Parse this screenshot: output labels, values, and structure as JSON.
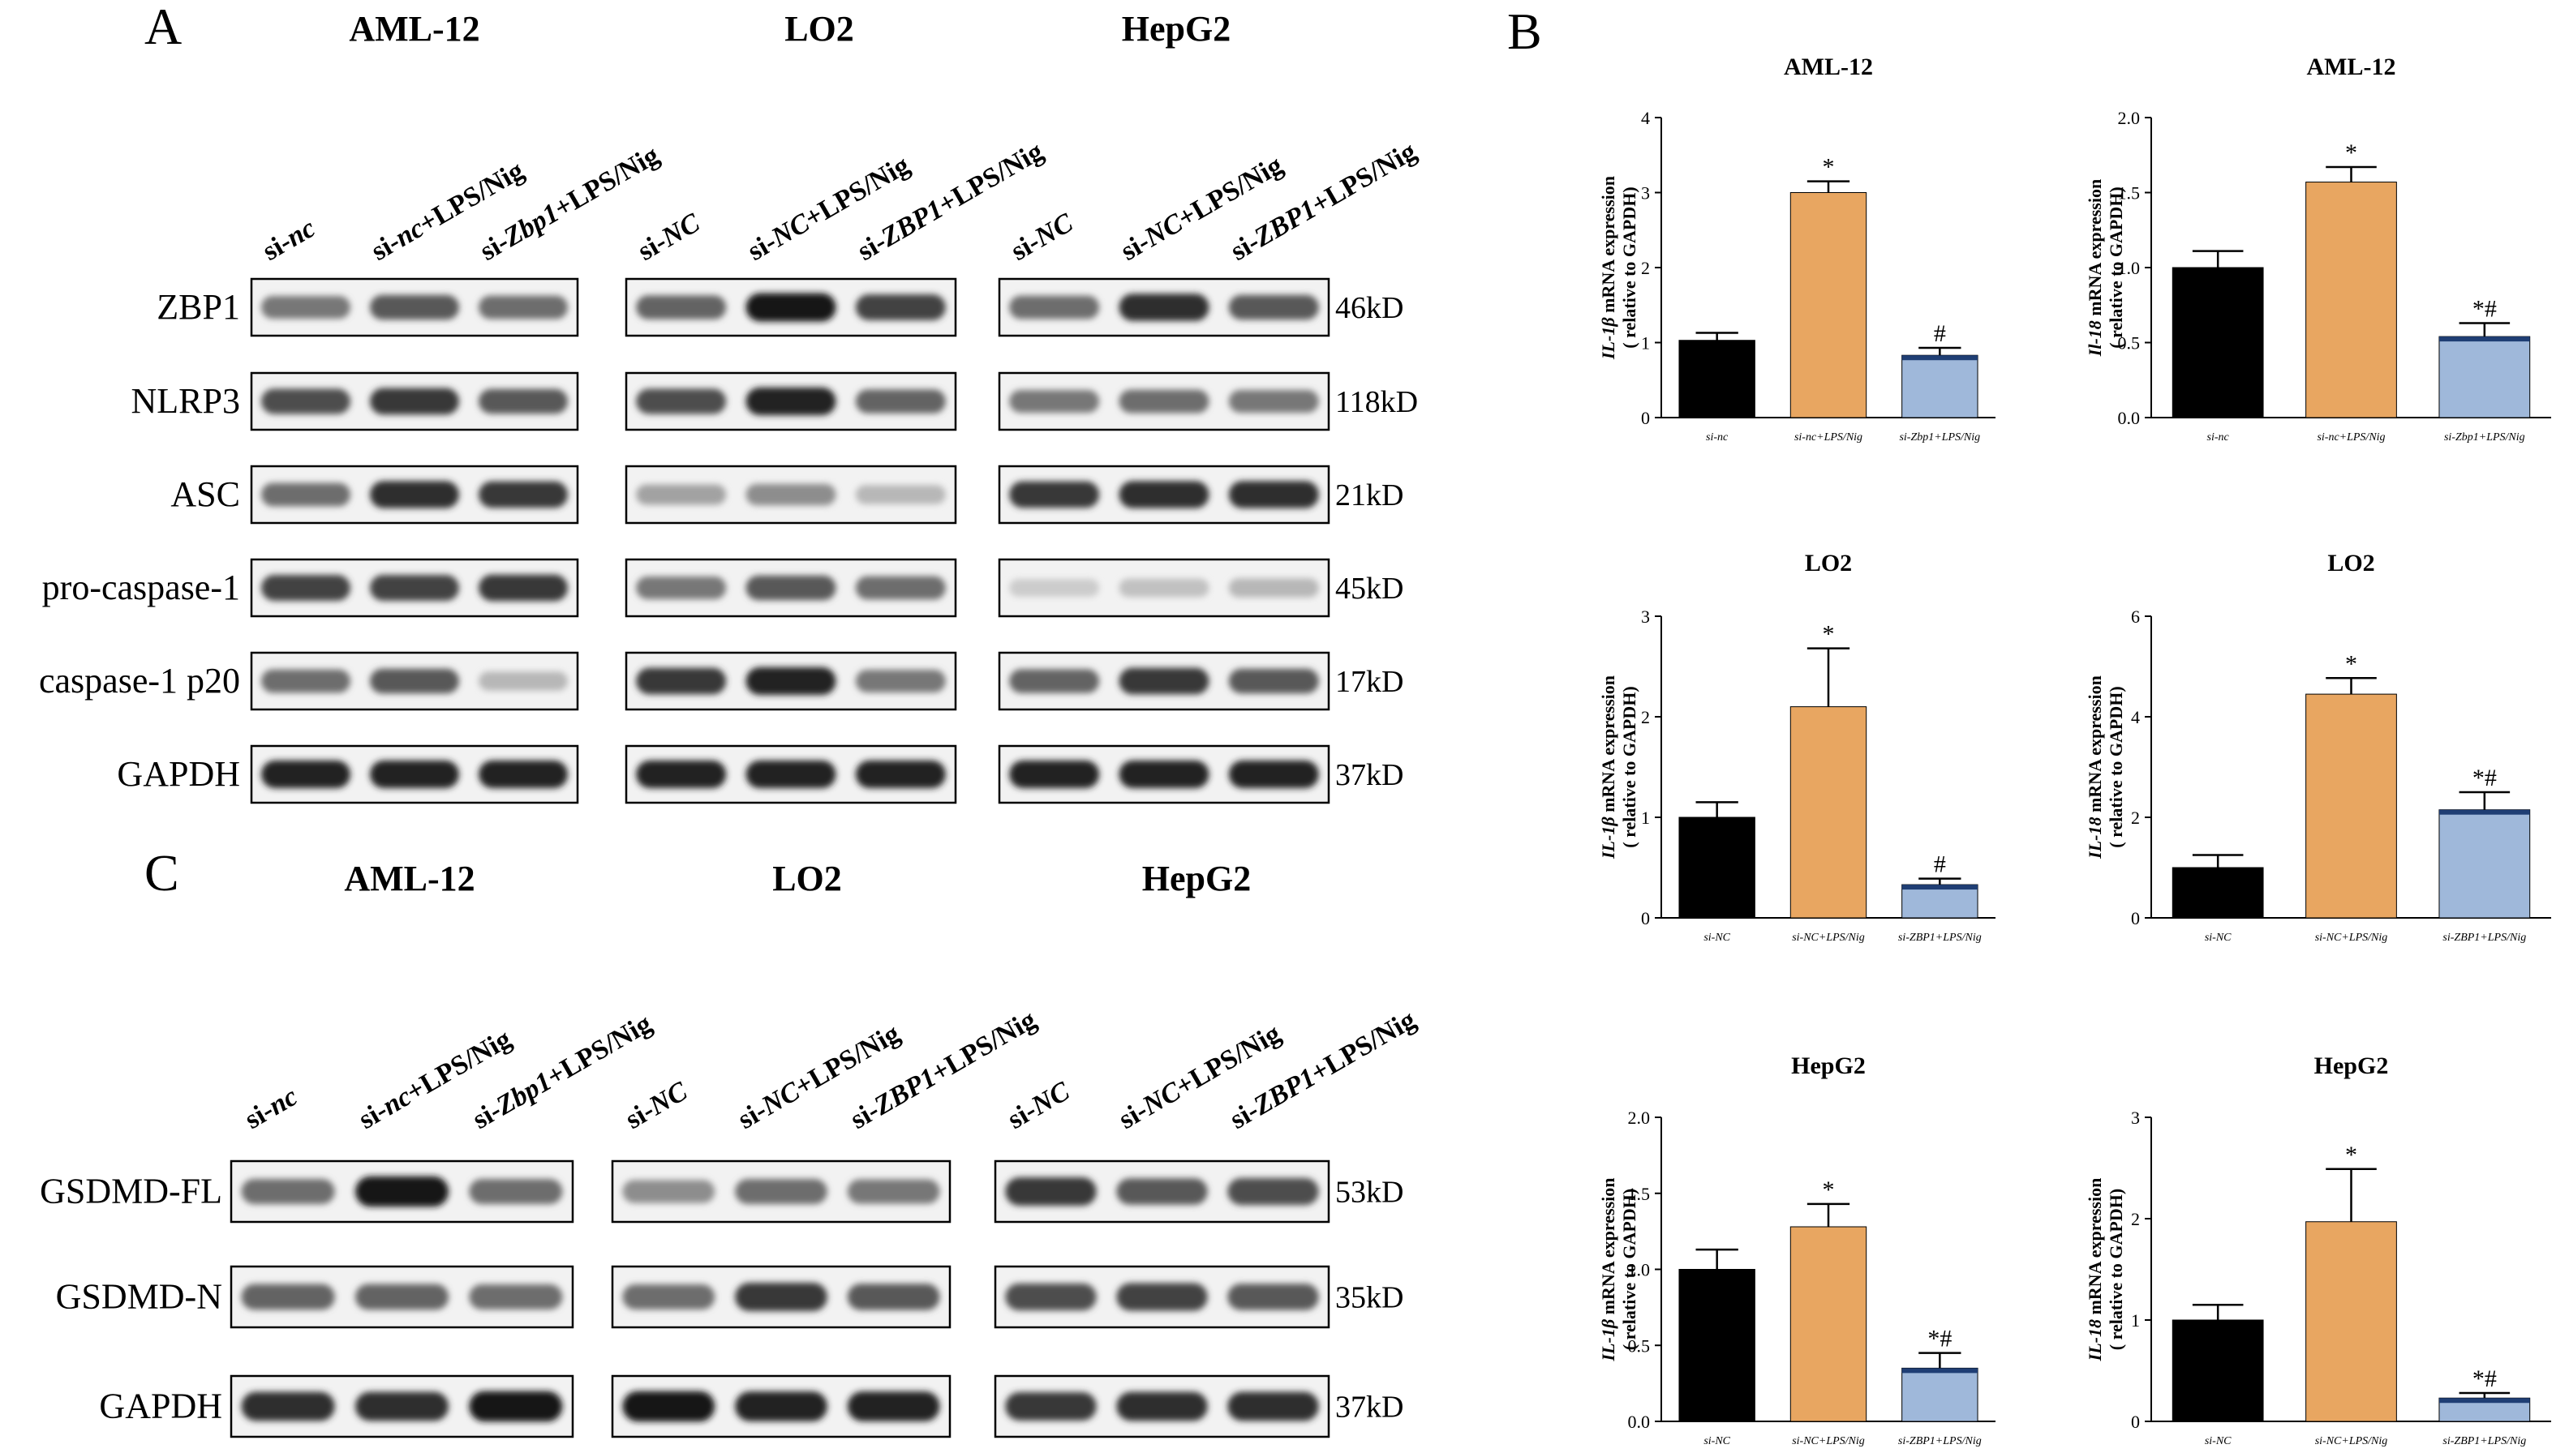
{
  "panel_letters": {
    "A": "A",
    "B": "B",
    "C": "C"
  },
  "blot_A": {
    "cell_lines": [
      "AML-12",
      "LO2",
      "HepG2"
    ],
    "lanes": [
      [
        {
          "pre": "si-",
          "it": "nc",
          "post": ""
        },
        {
          "pre": "si-",
          "it": "nc",
          "post": "+LPS/Nig"
        },
        {
          "pre": "si-",
          "it": "Zbp1",
          "post": "+LPS/Nig"
        }
      ],
      [
        {
          "pre": "si-",
          "it": "NC",
          "post": ""
        },
        {
          "pre": "si-",
          "it": "NC",
          "post": "+LPS/Nig"
        },
        {
          "pre": "si-",
          "it": "ZBP1",
          "post": "+LPS/Nig"
        }
      ],
      [
        {
          "pre": "si-",
          "it": "NC",
          "post": ""
        },
        {
          "pre": "si-",
          "it": "NC",
          "post": "+LPS/Nig"
        },
        {
          "pre": "si-",
          "it": "ZBP1",
          "post": "+LPS/Nig"
        }
      ]
    ],
    "rows": [
      {
        "label": "ZBP1",
        "kd": "46kD",
        "intensity": [
          [
            0.55,
            0.7,
            0.6
          ],
          [
            0.65,
            1.0,
            0.8
          ],
          [
            0.6,
            0.9,
            0.7
          ]
        ]
      },
      {
        "label": "NLRP3",
        "kd": "118kD",
        "intensity": [
          [
            0.75,
            0.85,
            0.7
          ],
          [
            0.75,
            0.95,
            0.65
          ],
          [
            0.55,
            0.6,
            0.55
          ]
        ]
      },
      {
        "label": "ASC",
        "kd": "21kD",
        "intensity": [
          [
            0.6,
            0.9,
            0.85
          ],
          [
            0.35,
            0.45,
            0.25
          ],
          [
            0.85,
            0.9,
            0.9
          ]
        ]
      },
      {
        "label": "pro-caspase-1",
        "kd": "45kD",
        "intensity": [
          [
            0.8,
            0.8,
            0.85
          ],
          [
            0.55,
            0.7,
            0.6
          ],
          [
            0.15,
            0.2,
            0.25
          ]
        ]
      },
      {
        "label": "caspase-1 p20",
        "kd": "17kD",
        "intensity": [
          [
            0.6,
            0.7,
            0.25
          ],
          [
            0.85,
            0.95,
            0.55
          ],
          [
            0.65,
            0.85,
            0.7
          ]
        ]
      },
      {
        "label": "GAPDH",
        "kd": "37kD",
        "intensity": [
          [
            0.95,
            0.95,
            0.95
          ],
          [
            0.95,
            0.95,
            0.95
          ],
          [
            0.95,
            0.95,
            0.95
          ]
        ]
      }
    ]
  },
  "blot_C": {
    "cell_lines": [
      "AML-12",
      "LO2",
      "HepG2"
    ],
    "lanes": [
      [
        {
          "pre": "si-",
          "it": "nc",
          "post": ""
        },
        {
          "pre": "si-",
          "it": "nc",
          "post": "+LPS/Nig"
        },
        {
          "pre": "si-",
          "it": "Zbp1",
          "post": "+LPS/Nig"
        }
      ],
      [
        {
          "pre": "si-",
          "it": "NC",
          "post": ""
        },
        {
          "pre": "si-",
          "it": "NC",
          "post": "+LPS/Nig"
        },
        {
          "pre": "si-",
          "it": "ZBP1",
          "post": "+LPS/Nig"
        }
      ],
      [
        {
          "pre": "si-",
          "it": "NC",
          "post": ""
        },
        {
          "pre": "si-",
          "it": "NC",
          "post": "+LPS/Nig"
        },
        {
          "pre": "si-",
          "it": "ZBP1",
          "post": "+LPS/Nig"
        }
      ]
    ],
    "rows": [
      {
        "label": "GSDMD-FL",
        "kd": "53kD",
        "intensity": [
          [
            0.6,
            1.0,
            0.6
          ],
          [
            0.45,
            0.6,
            0.55
          ],
          [
            0.85,
            0.7,
            0.75
          ]
        ]
      },
      {
        "label": "GSDMD-N",
        "kd": "35kD",
        "intensity": [
          [
            0.65,
            0.65,
            0.6
          ],
          [
            0.6,
            0.85,
            0.7
          ],
          [
            0.75,
            0.8,
            0.7
          ]
        ]
      },
      {
        "label": "GAPDH",
        "kd": "37kD",
        "intensity": [
          [
            0.9,
            0.9,
            1.0
          ],
          [
            1.0,
            0.95,
            0.95
          ],
          [
            0.85,
            0.9,
            0.9
          ]
        ]
      }
    ]
  },
  "colors": {
    "bar_1": "#000000",
    "bar_2": "#e8a661",
    "bar_3": "#9fb8da",
    "bar_3_top": "#1f3e74"
  },
  "chart_data": [
    {
      "type": "bar",
      "title": "AML-12",
      "ylabel_it": "IL-1β",
      "ylabel_rest": " mRNA expression",
      "ylabel_2": "( relative to GAPDH)",
      "categories": [
        "si-nc",
        "si-nc+LPS/Nig",
        "si-Zbp1+LPS/Nig"
      ],
      "values": [
        1.03,
        3.0,
        0.83
      ],
      "errors": [
        0.1,
        0.15,
        0.1
      ],
      "ylim": [
        0,
        4
      ],
      "yticks": [
        "0",
        "1",
        "2",
        "3",
        "4"
      ],
      "significance": [
        "",
        "*",
        "#"
      ]
    },
    {
      "type": "bar",
      "title": "AML-12",
      "ylabel_it": "Il-18",
      "ylabel_rest": " mRNA expression",
      "ylabel_2": "( relative to GAPDH)",
      "categories": [
        "si-nc",
        "si-nc+LPS/Nig",
        "si-Zbp1+LPS/Nig"
      ],
      "values": [
        1.0,
        1.57,
        0.54
      ],
      "errors": [
        0.11,
        0.1,
        0.09
      ],
      "ylim": [
        0,
        2.0
      ],
      "yticks": [
        "0.0",
        "0.5",
        "1.0",
        "1.5",
        "2.0"
      ],
      "significance": [
        "",
        "*",
        "*#"
      ]
    },
    {
      "type": "bar",
      "title": "LO2",
      "ylabel_it": "IL-1β",
      "ylabel_rest": " mRNA expression",
      "ylabel_2": "( relative to GAPDH)",
      "categories": [
        "si-NC",
        "si-NC+LPS/Nig",
        "si-ZBP1+LPS/Nig"
      ],
      "values": [
        1.0,
        2.1,
        0.33
      ],
      "errors": [
        0.15,
        0.58,
        0.06
      ],
      "ylim": [
        0,
        3
      ],
      "yticks": [
        "0",
        "1",
        "2",
        "3"
      ],
      "significance": [
        "",
        "*",
        "#"
      ]
    },
    {
      "type": "bar",
      "title": "LO2",
      "ylabel_it": "IL-18",
      "ylabel_rest": " mRNA expression",
      "ylabel_2": "( relative to GAPDH)",
      "categories": [
        "si-NC",
        "si-NC+LPS/Nig",
        "si-ZBP1+LPS/Nig"
      ],
      "values": [
        1.0,
        4.45,
        2.15
      ],
      "errors": [
        0.25,
        0.32,
        0.35
      ],
      "ylim": [
        0,
        6
      ],
      "yticks": [
        "0",
        "2",
        "4",
        "6"
      ],
      "significance": [
        "",
        "*",
        "*#"
      ]
    },
    {
      "type": "bar",
      "title": "HepG2",
      "ylabel_it": "IL-1β",
      "ylabel_rest": " mRNA expression",
      "ylabel_2": "( relative to GAPDH)",
      "categories": [
        "si-NC",
        "si-NC+LPS/Nig",
        "si-ZBP1+LPS/Nig"
      ],
      "values": [
        1.0,
        1.28,
        0.35
      ],
      "errors": [
        0.13,
        0.15,
        0.1
      ],
      "ylim": [
        0,
        2.0
      ],
      "yticks": [
        "0.0",
        "0.5",
        "1.0",
        "1.5",
        "2.0"
      ],
      "significance": [
        "",
        "*",
        "*#"
      ]
    },
    {
      "type": "bar",
      "title": "HepG2",
      "ylabel_it": "IL-18",
      "ylabel_rest": " mRNA expression",
      "ylabel_2": "( relative to GAPDH)",
      "categories": [
        "si-NC",
        "si-NC+LPS/Nig",
        "si-ZBP1+LPS/Nig"
      ],
      "values": [
        1.0,
        1.97,
        0.23
      ],
      "errors": [
        0.15,
        0.52,
        0.05
      ],
      "ylim": [
        0,
        3
      ],
      "yticks": [
        "0",
        "1",
        "2",
        "3"
      ],
      "significance": [
        "",
        "*",
        "*#"
      ]
    }
  ]
}
